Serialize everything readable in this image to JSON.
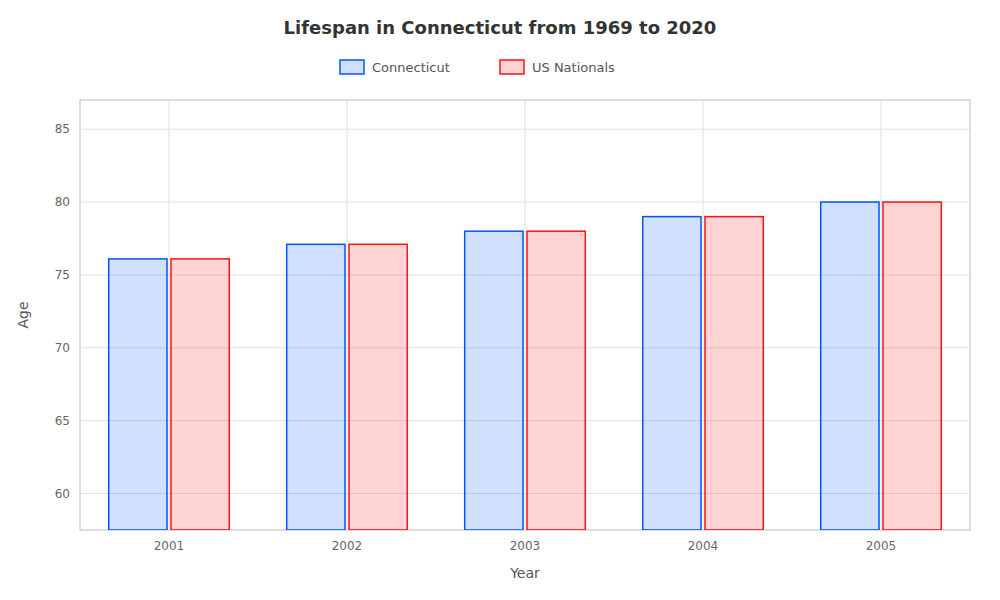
{
  "chart_data": {
    "type": "bar",
    "title": "Lifespan in Connecticut from 1969 to 2020",
    "x_label": "Year",
    "y_label": "Age",
    "categories": [
      "2001",
      "2002",
      "2003",
      "2004",
      "2005"
    ],
    "series": [
      {
        "name": "Connecticut",
        "color": "#0055ff",
        "values": [
          76.1,
          77.1,
          78.0,
          79.0,
          80.0
        ]
      },
      {
        "name": "US Nationals",
        "color": "#ff1111",
        "values": [
          76.1,
          77.1,
          78.0,
          79.0,
          80.0
        ]
      }
    ],
    "ylim": [
      57.5,
      87
    ],
    "yticks": [
      60,
      65,
      70,
      75,
      80,
      85
    ],
    "grid": true,
    "legend": "top"
  }
}
